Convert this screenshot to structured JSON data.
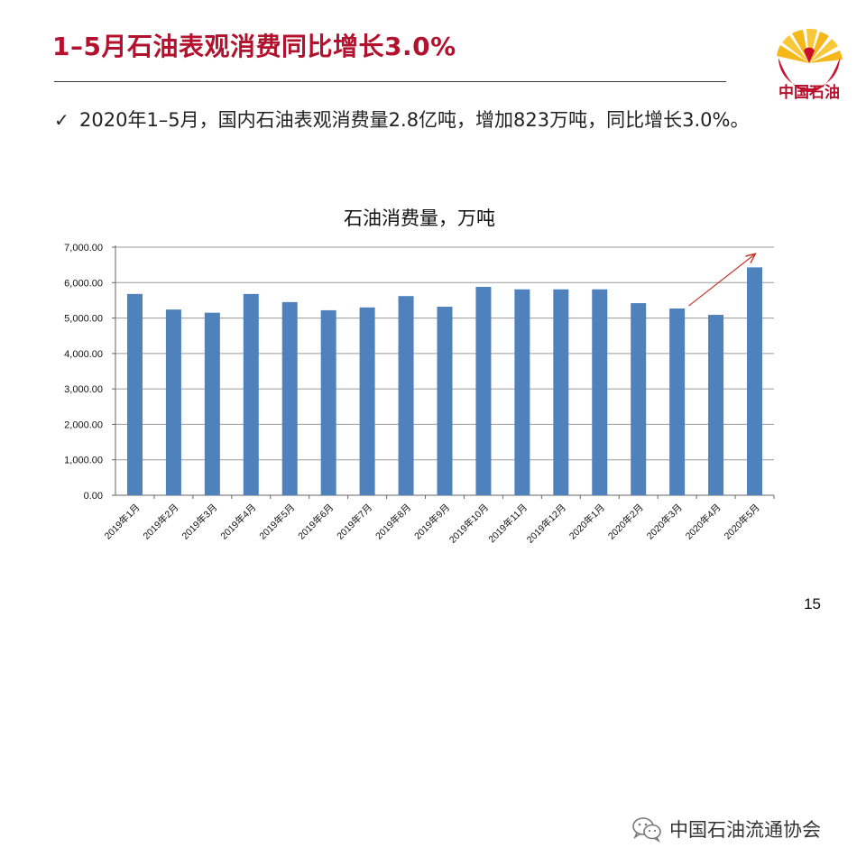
{
  "slide": {
    "title": "1–5月石油表观消费同比增长3.0%",
    "bullet_mark": "✓",
    "bullet_text": "2020年1–5月，国内石油表观消费量2.8亿吨，增加823万吨，同比增长3.0%。",
    "page_number": "15"
  },
  "logo": {
    "text": "中国石油",
    "colors": {
      "red": "#c8102e",
      "yellow": "#f5b81a"
    }
  },
  "footer": {
    "text": "中国石油流通协会",
    "icon": "wechat-icon"
  },
  "colors": {
    "title": "#b3122e",
    "bar": "#4f81bd",
    "grid": "#9a9a9a",
    "arrow": "#c0392b"
  },
  "chart_data": {
    "type": "bar",
    "title": "石油消费量，万吨",
    "categories": [
      "2019年1月",
      "2019年2月",
      "2019年3月",
      "2019年4月",
      "2019年5月",
      "2019年6月",
      "2019年7月",
      "2019年8月",
      "2019年9月",
      "2019年10月",
      "2019年11月",
      "2019年12月",
      "2020年1月",
      "2020年2月",
      "2020年3月",
      "2020年4月",
      "2020年5月"
    ],
    "values": [
      5680,
      5240,
      5150,
      5680,
      5450,
      5220,
      5300,
      5620,
      5320,
      5880,
      5810,
      5810,
      5810,
      5420,
      5270,
      5090,
      6430
    ],
    "ylim": [
      0,
      7000
    ],
    "yticks": [
      "0.00",
      "1,000.00",
      "2,000.00",
      "3,000.00",
      "4,000.00",
      "5,000.00",
      "6,000.00",
      "7,000.00"
    ],
    "grid": true,
    "annotation": "upward-arrow"
  }
}
